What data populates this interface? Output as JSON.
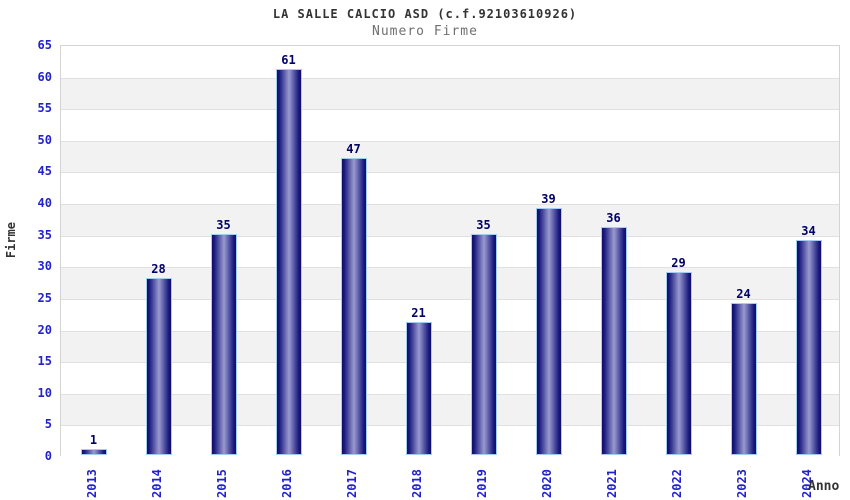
{
  "chart_data": {
    "type": "bar",
    "title": "LA SALLE CALCIO ASD (c.f.92103610926)",
    "subtitle": "Numero Firme",
    "xlabel": "Anno",
    "ylabel": "Firme",
    "categories": [
      "2013",
      "2014",
      "2015",
      "2016",
      "2017",
      "2018",
      "2019",
      "2020",
      "2021",
      "2022",
      "2023",
      "2024"
    ],
    "values": [
      1,
      28,
      35,
      61,
      47,
      21,
      35,
      39,
      36,
      29,
      24,
      34
    ],
    "ylim": [
      0,
      65
    ],
    "ytick_step": 5,
    "grid": "horizontal-bands",
    "legend": "none",
    "colors": {
      "bar_edge": "#0e0e66",
      "bar_dark": "#1b1b80",
      "bar_mid": "#9a9ad0",
      "bar_border": "#a3cdf0",
      "value_label": "#000066",
      "axis_tick_blue": "#2222cc",
      "title_text": "#333333",
      "subtitle_text": "#707070",
      "band_gray": "#f2f2f2",
      "gridline": "#e0e0e0",
      "plot_border": "#d4d4d4"
    }
  }
}
